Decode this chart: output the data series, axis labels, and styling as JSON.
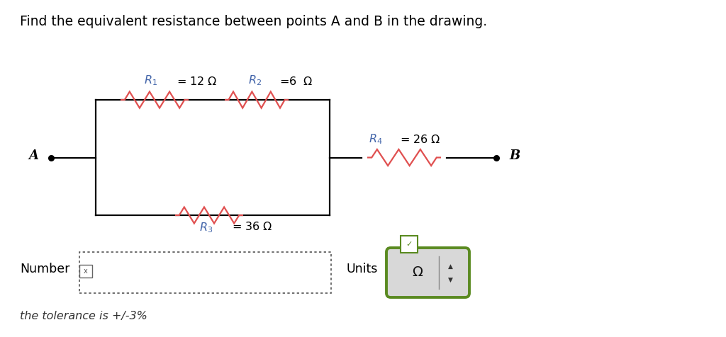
{
  "title": "Find the equivalent resistance between points A and B in the drawing.",
  "title_fontsize": 13.5,
  "background_color": "#ffffff",
  "resistor_color": "#e05050",
  "wire_color": "#000000",
  "label_color": "#000000",
  "blue_label_color": "#4466aa",
  "point_A": "A",
  "point_B": "B",
  "R1_val": "= 12 Ω",
  "R2_val": "=6  Ω",
  "R3_val": "= 36 Ω",
  "R4_val": "= 26 Ω",
  "number_label": "Number",
  "units_label": "Units",
  "omega_symbol": "Ω",
  "tolerance_text": "the tolerance is +/-3%",
  "green_color": "#5a8a20",
  "green_dark": "#4a7010",
  "box_bg": "#d8d8d8"
}
